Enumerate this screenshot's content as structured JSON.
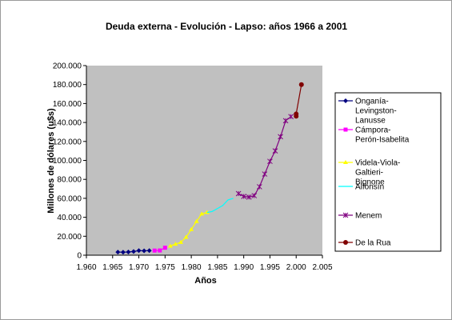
{
  "chart_data": {
    "type": "line",
    "title": "Deuda externa - Evolución - Lapso: años 1966 a 2001",
    "xlabel": "Años",
    "ylabel": "Millones de dólares (u$s)",
    "xlim": [
      1960,
      2005
    ],
    "ylim": [
      0,
      200000
    ],
    "xticks": [
      "1.960",
      "1.965",
      "1.970",
      "1.975",
      "1.980",
      "1.985",
      "1.990",
      "1.995",
      "2.000",
      "2.005"
    ],
    "yticks": [
      "0",
      "20.000",
      "40.000",
      "60.000",
      "80.000",
      "100.000",
      "120.000",
      "140.000",
      "160.000",
      "180.000",
      "200.000"
    ],
    "grid": false,
    "plot_background": "#c0c0c0",
    "legend_position": "right",
    "series": [
      {
        "name": "Onganía-Levingston-Lanusse",
        "color": "#000080",
        "marker": "diamond",
        "x": [
          1966,
          1967,
          1968,
          1969,
          1970,
          1971,
          1972
        ],
        "y": [
          3300,
          3200,
          3400,
          3900,
          4800,
          4600,
          4800
        ]
      },
      {
        "name": "Cámpora-Perón-Isabelita",
        "color": "#ff00ff",
        "marker": "square",
        "x": [
          1973,
          1974,
          1975
        ],
        "y": [
          4900,
          5000,
          7900
        ]
      },
      {
        "name": "Videla-Viola-Galtieri-Bignone",
        "color": "#ffff00",
        "marker": "triangle",
        "x": [
          1976,
          1977,
          1978,
          1979,
          1980,
          1981,
          1982,
          1983
        ],
        "y": [
          9700,
          11700,
          13600,
          19000,
          27200,
          35700,
          43600,
          45100
        ]
      },
      {
        "name": "Alfonsín",
        "color": "#00ffff",
        "marker": "none",
        "x": [
          1983,
          1984,
          1985,
          1986,
          1987,
          1988
        ],
        "y": [
          45100,
          46200,
          49300,
          52400,
          58300,
          60000
        ]
      },
      {
        "name": "Menem",
        "color": "#800080",
        "marker": "star",
        "x": [
          1989,
          1990,
          1991,
          1992,
          1993,
          1994,
          1995,
          1996,
          1997,
          1998,
          1999
        ],
        "y": [
          65000,
          62000,
          61300,
          62800,
          72200,
          85600,
          99000,
          110000,
          125000,
          141900,
          146200
        ]
      },
      {
        "name": "De la Rua",
        "color": "#800000",
        "marker": "circle",
        "x": [
          2000,
          2000,
          2001
        ],
        "y": [
          146600,
          149000,
          180000
        ]
      }
    ]
  }
}
